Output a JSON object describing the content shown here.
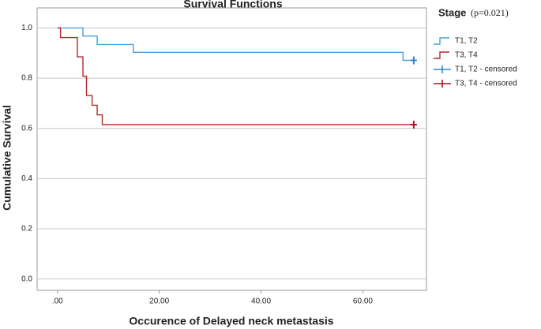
{
  "chart_data": {
    "type": "step",
    "title": "Survival Functions",
    "xlabel": "Occurence of Delayed neck metastasis",
    "ylabel": "Cumulative Survival",
    "legend_title": "Stage",
    "legend_note": "(p=0.021)",
    "legend_position": "right",
    "grid": true,
    "xlim": [
      -4,
      72.5
    ],
    "ylim": [
      -0.045,
      1.08
    ],
    "xticks": [
      {
        "value": 0,
        "label": ".00"
      },
      {
        "value": 20,
        "label": "20.00"
      },
      {
        "value": 40,
        "label": "40.00"
      },
      {
        "value": 60,
        "label": "60.00"
      }
    ],
    "yticks": [
      {
        "value": 0,
        "label": "0.0"
      },
      0.2,
      0.4,
      0.6,
      0.8,
      {
        "value": 1,
        "label": "1.0"
      }
    ],
    "series": [
      {
        "name": "T1, T2",
        "color": "#4a9fdc",
        "style": "step",
        "x": [
          0,
          5.0,
          7.8,
          14.9,
          67.9,
          70
        ],
        "values": [
          1.0,
          0.968,
          0.934,
          0.903,
          0.871,
          0.871
        ]
      },
      {
        "name": "T3, T4",
        "color": "#b3272d",
        "style": "step",
        "x": [
          0,
          0.6,
          3.9,
          5.0,
          5.7,
          6.8,
          7.8,
          8.8,
          70
        ],
        "values": [
          1.0,
          0.962,
          0.885,
          0.808,
          0.731,
          0.692,
          0.654,
          0.615,
          0.615
        ]
      },
      {
        "name": "T1, T2 - censored",
        "color": "#2f86d0",
        "style": "censored",
        "x": [
          70
        ],
        "values": [
          0.871
        ]
      },
      {
        "name": "T3, T4 - censored",
        "color": "#9c1c22",
        "style": "censored",
        "x": [
          70
        ],
        "values": [
          0.615
        ]
      }
    ]
  }
}
